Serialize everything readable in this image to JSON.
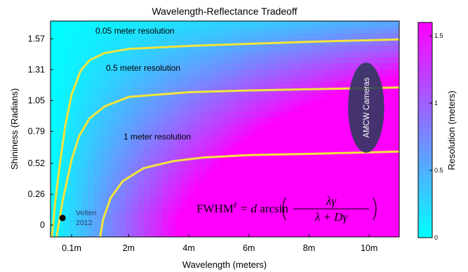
{
  "chart_data": {
    "type": "heatmap",
    "title": "Wavelength-Reflectance Tradeoff",
    "xlabel": "Wavelength (meters)",
    "ylabel": "Shininess (Radians)",
    "x_tick_labels": [
      "0.1m",
      "2m",
      "4m",
      "6m",
      "8m",
      "10m"
    ],
    "x_tick_values": [
      0.1,
      2,
      4,
      6,
      8,
      10
    ],
    "xlim": [
      -0.6,
      11
    ],
    "y_tick_labels": [
      "0",
      "0.26",
      "0.52",
      "0.79",
      "1.05",
      "1.31",
      "1.57"
    ],
    "y_tick_values": [
      0,
      0.26,
      0.52,
      0.79,
      1.05,
      1.31,
      1.57
    ],
    "ylim": [
      -0.1,
      1.72
    ],
    "grid": false,
    "colorbar": {
      "label": "Resolution (meters)",
      "tick_labels": [
        "0",
        "0.5",
        "1",
        "1.5"
      ],
      "tick_values": [
        0,
        0.5,
        1,
        1.5
      ],
      "range": [
        0,
        1.6
      ],
      "colors": [
        "#00ffff",
        "#ff00ff"
      ]
    },
    "contours": [
      {
        "label": "0.05 meter resolution",
        "level": 0.05,
        "color": "#f2e43c",
        "points": [
          [
            -0.55,
            -0.1
          ],
          [
            -0.45,
            0.18
          ],
          [
            -0.3,
            0.5
          ],
          [
            -0.1,
            0.85
          ],
          [
            0.1,
            1.1
          ],
          [
            0.4,
            1.3
          ],
          [
            0.7,
            1.39
          ],
          [
            1.2,
            1.45
          ],
          [
            2,
            1.485
          ],
          [
            4,
            1.51
          ],
          [
            6,
            1.528
          ],
          [
            8,
            1.545
          ],
          [
            11,
            1.565
          ]
        ]
      },
      {
        "label": "0.5 meter resolution",
        "level": 0.5,
        "color": "#f2e43c",
        "points": [
          [
            -0.4,
            -0.1
          ],
          [
            -0.2,
            0.2
          ],
          [
            0.1,
            0.55
          ],
          [
            0.35,
            0.75
          ],
          [
            0.7,
            0.9
          ],
          [
            1.2,
            1.0
          ],
          [
            2,
            1.08
          ],
          [
            4,
            1.12
          ],
          [
            6,
            1.135
          ],
          [
            8,
            1.145
          ],
          [
            11,
            1.16
          ]
        ]
      },
      {
        "label": "1 meter resolution",
        "level": 1,
        "color": "#f2e43c",
        "points": [
          [
            1.05,
            -0.1
          ],
          [
            1.15,
            0.05
          ],
          [
            1.4,
            0.23
          ],
          [
            1.8,
            0.37
          ],
          [
            2.5,
            0.48
          ],
          [
            3.5,
            0.54
          ],
          [
            4.5,
            0.57
          ],
          [
            6,
            0.59
          ],
          [
            8,
            0.6
          ],
          [
            11,
            0.62
          ]
        ]
      }
    ],
    "points": [
      {
        "label": "Velten\n2012",
        "x": -0.2,
        "y": 0.06
      }
    ],
    "annotations": {
      "ellipse_label": "AMCW Cameras",
      "ellipse_center": [
        9.9,
        0.99
      ],
      "ellipse_radii": [
        0.6,
        0.38
      ],
      "formula": "FWHM^ℓ = d arcsin( λγ / (λ + Dγ) )"
    }
  }
}
